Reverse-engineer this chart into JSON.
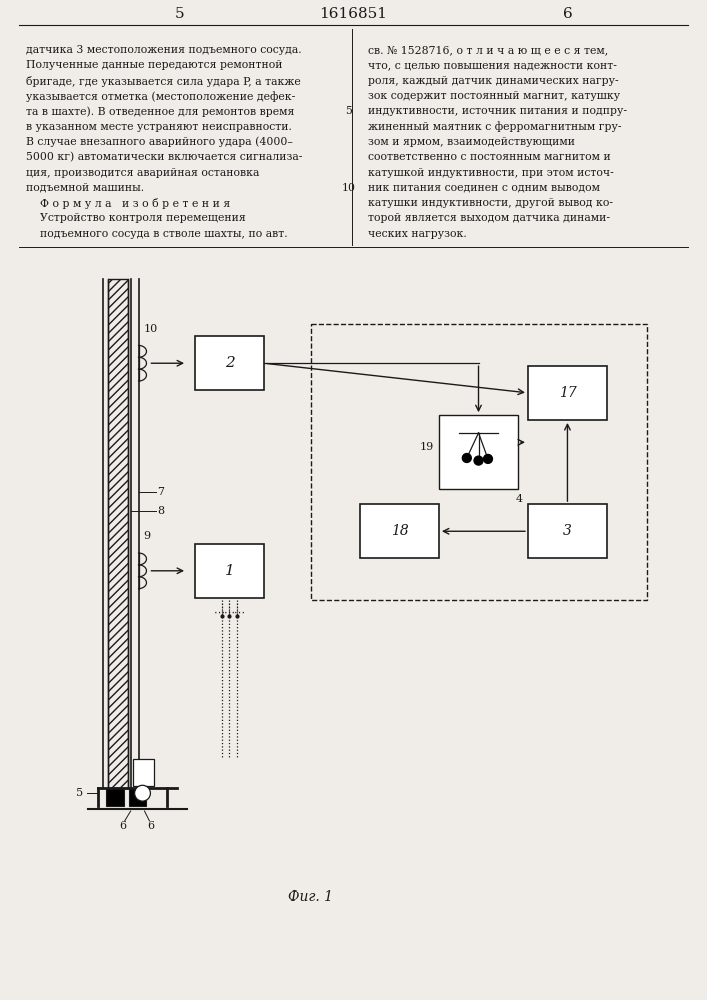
{
  "bg_color": "#f0ede8",
  "line_color": "#1a1a1a",
  "text_color": "#1a1a1a",
  "page_header": {
    "left_num": "5",
    "center_num": "1616851",
    "right_num": "6"
  },
  "left_text_lines": [
    "датчика 3 местоположения подъемного сосуда.",
    "Полученные данные передаются ремонтной",
    "бригаде, где указывается сила удара P, а также",
    "указывается отметка (местоположение дефек-",
    "та в шахте). В отведенное для ремонтов время",
    "в указанном месте устраняют неисправности.",
    "В случае внезапного аварийного удара (4000–",
    "5000 кг) автоматически включается сигнализа-",
    "ция, производится аварийная остановка",
    "подъемной машины.",
    "    Ф о р м у л а   и з о б р е т е н и я",
    "    Устройство контроля перемещения",
    "    подъемного сосуда в стволе шахты, по авт."
  ],
  "right_text_lines": [
    "св. № 1528716, о т л и ч а ю щ е е с я тем,",
    "что, с целью повышения надежности конт-",
    "роля, каждый датчик динамических нагру-",
    "зок содержит постоянный магнит, катушку",
    "индуктивности, источник питания и подпру-",
    "жиненный маятник с ферромагнитным гру-",
    "зом и ярмом, взаимодействующими",
    "соответственно с постоянным магнитом и",
    "катушкой индуктивности, при этом источ-",
    "ник питания соединен с одним выводом",
    "катушки индуктивности, другой вывод ко-",
    "торой является выходом датчика динами-",
    "ческих нагрузок."
  ],
  "caption": "Фиг. 1"
}
